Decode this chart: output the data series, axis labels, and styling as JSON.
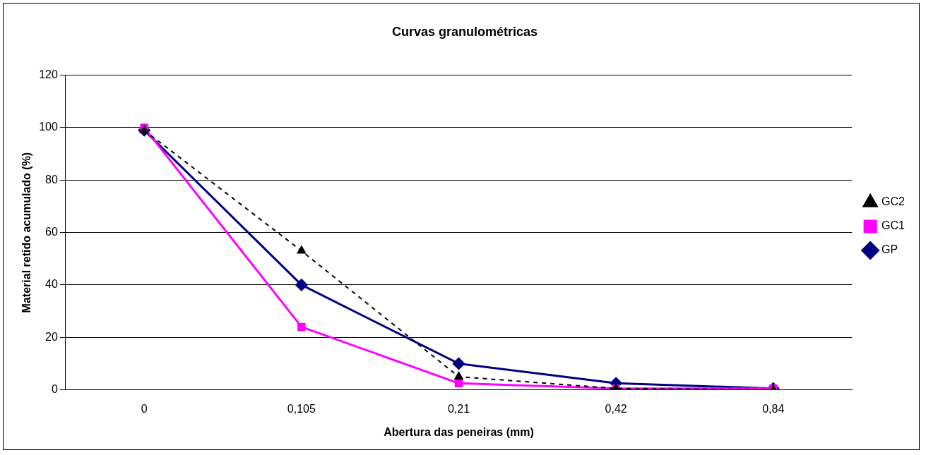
{
  "chart_data": {
    "type": "line",
    "title": "Curvas granulométricas",
    "xlabel": "Abertura das peneiras (mm)",
    "ylabel": "Material retido acumulado (%)",
    "categories": [
      "0",
      "0,105",
      "0,21",
      "0,42",
      "0,84"
    ],
    "series": [
      {
        "name": "GP",
        "color": "#000080",
        "marker": "diamond",
        "line_style": "solid",
        "values": [
          99,
          40,
          10,
          2.5,
          0.5
        ]
      },
      {
        "name": "GC1",
        "color": "#ff00ff",
        "marker": "square",
        "line_style": "solid",
        "values": [
          100,
          24,
          2.5,
          0.5,
          0.5
        ]
      },
      {
        "name": "GC2",
        "color": "#000000",
        "marker": "triangle",
        "line_style": "dashed",
        "values": [
          99,
          53,
          5,
          0.5,
          0
        ]
      }
    ],
    "ylim": [
      0,
      120
    ],
    "yticks": [
      0,
      20,
      40,
      60,
      80,
      100,
      120
    ],
    "grid": "y",
    "legend": "right"
  }
}
